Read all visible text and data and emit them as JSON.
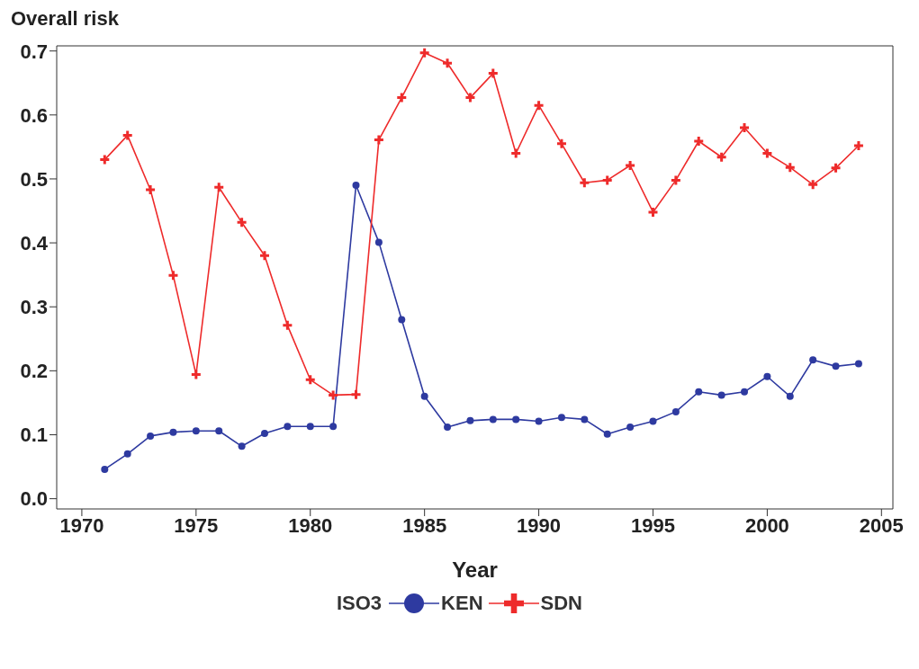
{
  "chart_data": {
    "type": "line",
    "ylabel": "Overall risk",
    "xlabel": "Year",
    "legend_title": "ISO3",
    "legend": "bottom",
    "grid": false,
    "line_style": "solid",
    "x": [
      1971,
      1972,
      1973,
      1974,
      1975,
      1976,
      1977,
      1978,
      1979,
      1980,
      1981,
      1982,
      1983,
      1984,
      1985,
      1986,
      1987,
      1988,
      1989,
      1990,
      1991,
      1992,
      1993,
      1994,
      1995,
      1996,
      1997,
      1998,
      1999,
      2000,
      2001,
      2002,
      2003,
      2004
    ],
    "xlim": [
      1968.9,
      2005.5
    ],
    "xticks": [
      1970,
      1975,
      1980,
      1985,
      1990,
      1995,
      2000,
      2005
    ],
    "ylim": [
      -0.016,
      0.708
    ],
    "yticks": [
      {
        "value": 0,
        "label": "0.0"
      },
      0.1,
      0.2,
      0.3,
      0.4,
      0.5,
      0.6,
      0.7
    ],
    "series": [
      {
        "name": "KEN",
        "color": "#2e3aa0",
        "marker": "circle",
        "values": [
          0.046,
          0.07,
          0.098,
          0.104,
          0.106,
          0.106,
          0.082,
          0.102,
          0.113,
          0.113,
          0.113,
          0.49,
          0.401,
          0.28,
          0.16,
          0.112,
          0.122,
          0.124,
          0.124,
          0.121,
          0.127,
          0.124,
          0.101,
          0.112,
          0.121,
          0.136,
          0.167,
          0.162,
          0.167,
          0.191,
          0.16,
          0.217,
          0.207,
          0.211
        ]
      },
      {
        "name": "SDN",
        "color": "#ee2b2b",
        "marker": "cross",
        "values": [
          0.53,
          0.568,
          0.483,
          0.349,
          0.194,
          0.487,
          0.432,
          0.38,
          0.271,
          0.186,
          0.162,
          0.163,
          0.561,
          0.627,
          0.697,
          0.681,
          0.627,
          0.665,
          0.54,
          0.615,
          0.555,
          0.494,
          0.498,
          0.521,
          0.448,
          0.498,
          0.559,
          0.534,
          0.58,
          0.54,
          0.518,
          0.491,
          0.517,
          0.552
        ]
      }
    ]
  }
}
